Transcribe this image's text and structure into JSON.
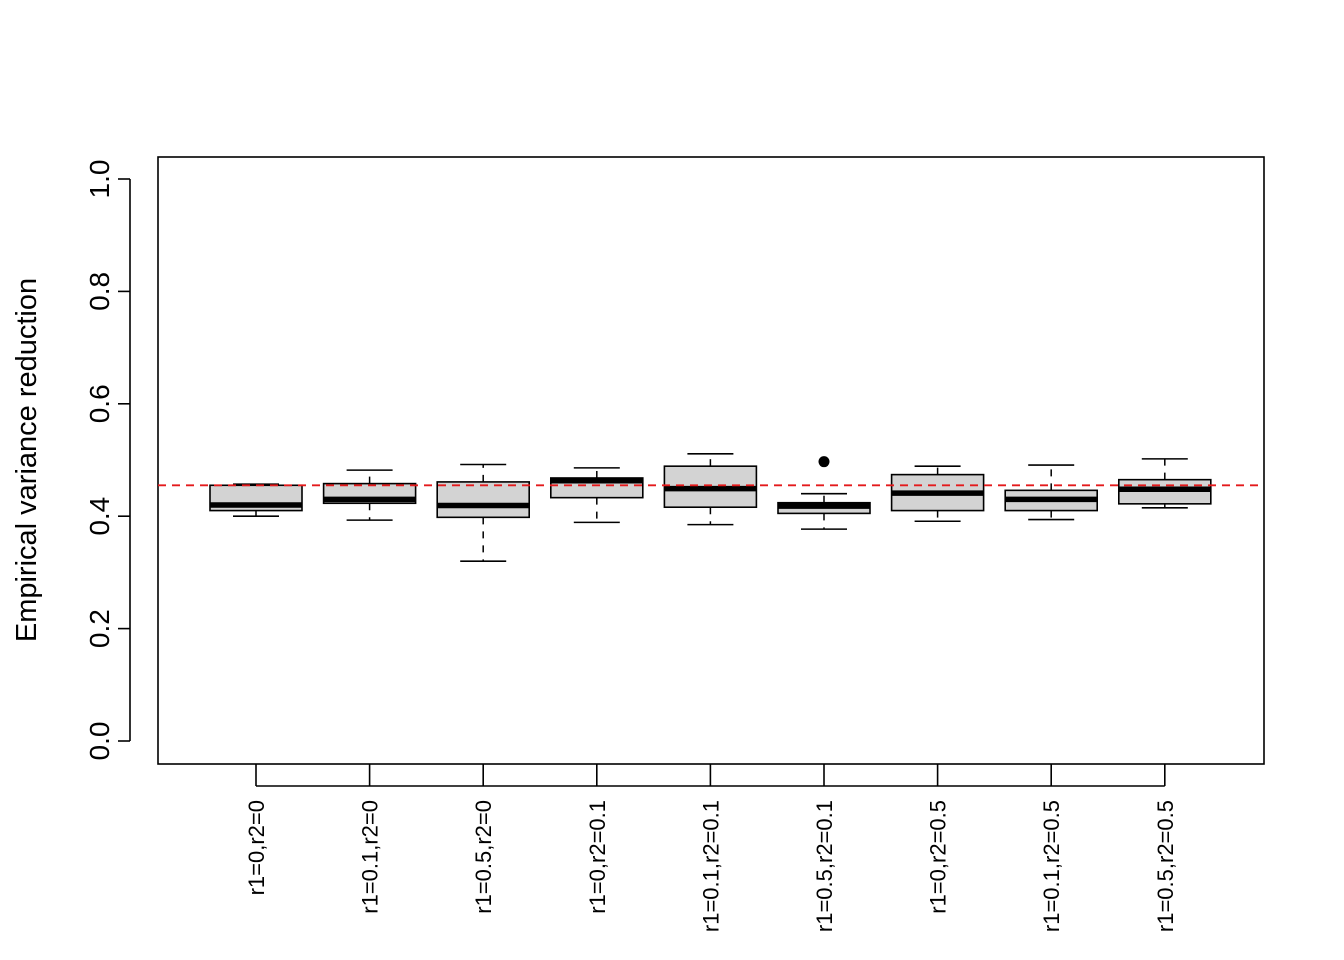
{
  "chart_data": {
    "type": "boxplot",
    "ylabel": "Empirical variance reduction",
    "ylim": [
      0.0,
      1.0
    ],
    "yticks": [
      "0.0",
      "0.2",
      "0.4",
      "0.6",
      "0.8",
      "1.0"
    ],
    "grid": false,
    "reference_line": {
      "y": 0.455,
      "color": "#e41a1c",
      "style": "dashed"
    },
    "box_fill": "#d3d3d3",
    "categories": [
      "r1=0,r2=0",
      "r1=0.1,r2=0",
      "r1=0.5,r2=0",
      "r1=0,r2=0.1",
      "r1=0.1,r2=0.1",
      "r1=0.5,r2=0.1",
      "r1=0,r2=0.5",
      "r1=0.1,r2=0.5",
      "r1=0.5,r2=0.5"
    ],
    "boxes": [
      {
        "whisker_low": 0.4,
        "q1": 0.41,
        "median": 0.42,
        "q3": 0.455,
        "whisker_high": 0.457,
        "outliers": []
      },
      {
        "whisker_low": 0.393,
        "q1": 0.423,
        "median": 0.43,
        "q3": 0.458,
        "whisker_high": 0.482,
        "outliers": []
      },
      {
        "whisker_low": 0.32,
        "q1": 0.398,
        "median": 0.419,
        "q3": 0.461,
        "whisker_high": 0.492,
        "outliers": []
      },
      {
        "whisker_low": 0.389,
        "q1": 0.433,
        "median": 0.463,
        "q3": 0.468,
        "whisker_high": 0.486,
        "outliers": []
      },
      {
        "whisker_low": 0.385,
        "q1": 0.416,
        "median": 0.449,
        "q3": 0.489,
        "whisker_high": 0.511,
        "outliers": []
      },
      {
        "whisker_low": 0.377,
        "q1": 0.405,
        "median": 0.418,
        "q3": 0.424,
        "whisker_high": 0.44,
        "outliers": [
          0.497
        ]
      },
      {
        "whisker_low": 0.391,
        "q1": 0.41,
        "median": 0.441,
        "q3": 0.474,
        "whisker_high": 0.489,
        "outliers": []
      },
      {
        "whisker_low": 0.394,
        "q1": 0.41,
        "median": 0.43,
        "q3": 0.446,
        "whisker_high": 0.491,
        "outliers": []
      },
      {
        "whisker_low": 0.415,
        "q1": 0.422,
        "median": 0.448,
        "q3": 0.465,
        "whisker_high": 0.502,
        "outliers": []
      }
    ]
  }
}
